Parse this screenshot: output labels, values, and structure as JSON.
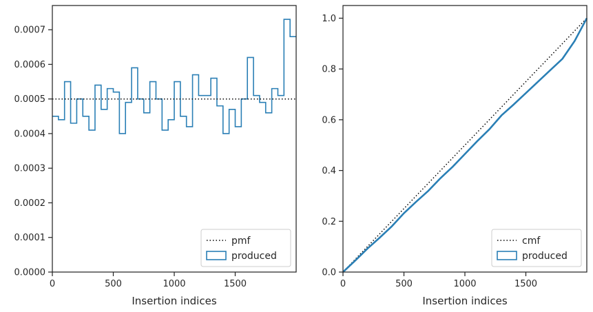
{
  "colors": {
    "produced": "#2a7fb5",
    "reference": "#000000",
    "frame": "#262626"
  },
  "chart_data": [
    {
      "type": "step-histogram",
      "xlabel": "Insertion indices",
      "ylabel": "",
      "xlim": [
        0,
        2000
      ],
      "ylim": [
        0,
        0.00077
      ],
      "x_ticks": [
        0,
        500,
        1000,
        1500
      ],
      "y_ticks": [
        0.0,
        0.0001,
        0.0002,
        0.0003,
        0.0004,
        0.0005,
        0.0006,
        0.0007
      ],
      "x_tick_labels": [
        "0",
        "500",
        "1000",
        "1500"
      ],
      "y_tick_labels": [
        "0.0000",
        "0.0001",
        "0.0002",
        "0.0003",
        "0.0004",
        "0.0005",
        "0.0006",
        "0.0007"
      ],
      "bin_width": 50,
      "series": [
        {
          "name": "produced",
          "style": "step",
          "bin_edges": [
            0,
            50,
            100,
            150,
            200,
            250,
            300,
            350,
            400,
            450,
            500,
            550,
            600,
            650,
            700,
            750,
            800,
            850,
            900,
            950,
            1000,
            1050,
            1100,
            1150,
            1200,
            1250,
            1300,
            1350,
            1400,
            1450,
            1500,
            1550,
            1600,
            1650,
            1700,
            1750,
            1800,
            1850,
            1900,
            1950,
            2000
          ],
          "values": [
            0.00045,
            0.00044,
            0.00055,
            0.00043,
            0.0005,
            0.00045,
            0.00041,
            0.00054,
            0.00047,
            0.00053,
            0.00052,
            0.0004,
            0.00049,
            0.00059,
            0.0005,
            0.00046,
            0.00055,
            0.0005,
            0.00041,
            0.00044,
            0.00055,
            0.00045,
            0.00042,
            0.00057,
            0.00051,
            0.00051,
            0.00056,
            0.00048,
            0.0004,
            0.00047,
            0.00042,
            0.0005,
            0.00062,
            0.00051,
            0.00049,
            0.00046,
            0.00053,
            0.00051,
            0.00073,
            0.00068
          ]
        },
        {
          "name": "pmf",
          "style": "dotted",
          "x": [
            0,
            2000
          ],
          "y": [
            0.0005,
            0.0005
          ]
        }
      ],
      "legend": {
        "location": "lower-right",
        "entries": [
          "pmf",
          "produced"
        ]
      }
    },
    {
      "type": "line",
      "xlabel": "Insertion indices",
      "ylabel": "",
      "xlim": [
        0,
        2000
      ],
      "ylim": [
        0,
        1.05
      ],
      "x_ticks": [
        0,
        500,
        1000,
        1500
      ],
      "y_ticks": [
        0.0,
        0.2,
        0.4,
        0.6,
        0.8,
        1.0
      ],
      "x_tick_labels": [
        "0",
        "500",
        "1000",
        "1500"
      ],
      "y_tick_labels": [
        "0.0",
        "0.2",
        "0.4",
        "0.6",
        "0.8",
        "1.0"
      ],
      "series": [
        {
          "name": "cmf",
          "style": "dotted",
          "x": [
            0,
            2000
          ],
          "y": [
            0,
            1.0
          ]
        },
        {
          "name": "produced",
          "style": "line",
          "x": [
            0,
            100,
            200,
            300,
            400,
            500,
            600,
            700,
            800,
            900,
            1000,
            1100,
            1200,
            1300,
            1400,
            1500,
            1600,
            1700,
            1800,
            1900,
            2000
          ],
          "y": [
            0,
            0.045,
            0.092,
            0.135,
            0.18,
            0.232,
            0.277,
            0.32,
            0.37,
            0.415,
            0.465,
            0.515,
            0.562,
            0.617,
            0.66,
            0.705,
            0.75,
            0.795,
            0.84,
            0.91,
            1.0
          ]
        }
      ],
      "legend": {
        "location": "lower-right",
        "entries": [
          "cmf",
          "produced"
        ]
      }
    }
  ]
}
